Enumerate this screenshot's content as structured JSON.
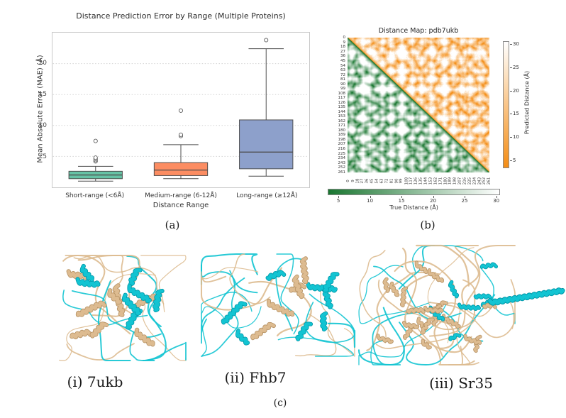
{
  "figure": {
    "panel_a_label": "(a)",
    "panel_b_label": "(b)",
    "panel_c_label": "(c)"
  },
  "chart_data": [
    {
      "id": "error_boxplot",
      "type": "boxplot",
      "title": "Distance Prediction Error by Range (Multiple Proteins)",
      "xlabel": "Distance Range",
      "ylabel": "Mean Absolute Error (MAE) (Å)",
      "ylim": [
        0,
        25
      ],
      "yticks": [
        5,
        10,
        15,
        20
      ],
      "grid": "horizontal-dotted",
      "legend": "none",
      "categories": [
        "Short-range (<6Å)",
        "Medium-range (6-12Å)",
        "Long-range (≥12Å)"
      ],
      "box_colors": [
        "#66c2a5",
        "#fc8d62",
        "#8da0cb"
      ],
      "boxes": [
        {
          "whisker_low": 1.0,
          "q1": 1.4,
          "median": 2.0,
          "q3": 2.6,
          "whisker_high": 3.4,
          "outliers": [
            4.2,
            4.4,
            4.6,
            4.8,
            7.5
          ]
        },
        {
          "whisker_low": 1.4,
          "q1": 1.9,
          "median": 2.8,
          "q3": 4.0,
          "whisker_high": 6.9,
          "outliers": [
            8.3,
            8.5,
            12.4
          ]
        },
        {
          "whisker_low": 1.8,
          "q1": 3.0,
          "median": 5.7,
          "q3": 10.9,
          "whisker_high": 22.4,
          "outliers": [
            23.8
          ]
        }
      ]
    },
    {
      "id": "distance_map",
      "type": "heatmap",
      "title": "Distance Map: pdb7ukb",
      "size": 262,
      "residue_ticks": [
        0,
        9,
        18,
        27,
        36,
        45,
        54,
        63,
        72,
        81,
        90,
        99,
        108,
        117,
        126,
        135,
        144,
        153,
        162,
        171,
        180,
        189,
        198,
        207,
        216,
        225,
        234,
        243,
        252,
        261
      ],
      "value_range": [
        3.3,
        30.6
      ],
      "lower_triangle": {
        "content": "true distances",
        "colormap": "Greens (dark = near)",
        "label": "True Distance (Å)",
        "colorbar_orientation": "horizontal",
        "colorbar_ticks": [
          5,
          10,
          15,
          20,
          25,
          30
        ]
      },
      "upper_triangle": {
        "content": "predicted distances",
        "colormap": "Oranges (dark = near)",
        "label": "Predicted Distance (Å)",
        "colorbar_orientation": "vertical",
        "colorbar_ticks": [
          5,
          10,
          15,
          20,
          25,
          30
        ]
      }
    }
  ],
  "proteins": [
    {
      "label": "(i) 7ukb"
    },
    {
      "label": "(ii) Fhb7"
    },
    {
      "label": "(iii) Sr35"
    }
  ],
  "colors": {
    "ribbon_cyan": "#12c4d2",
    "ribbon_cyan_dark": "#0097a8",
    "ribbon_tan": "#ddbb90",
    "ribbon_tan_dark": "#b59163",
    "heat_green_dark": "#197832",
    "heat_orange_dark": "#f48c14",
    "box_edge": "#4d4d4d"
  }
}
